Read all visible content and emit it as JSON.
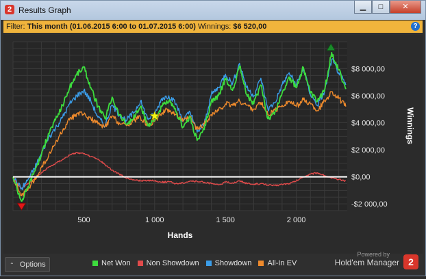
{
  "window": {
    "title": "Results Graph",
    "app_icon_label": "2",
    "minimize_label": "▁",
    "maximize_label": "□",
    "close_label": "✕"
  },
  "filter": {
    "prefix": "Filter:",
    "value": "This month (01.06.2015 6:00 to 01.07.2015 6:00)",
    "winnings_label": "Winnings:",
    "winnings_value": "$6 520,00",
    "help_label": "?"
  },
  "chart_data": {
    "type": "line",
    "xlabel": "Hands",
    "ylabel": "Winnings",
    "xlim": [
      0,
      2360
    ],
    "ylim": [
      -2500,
      10000
    ],
    "x_ticks": [
      500,
      1000,
      1500,
      2000
    ],
    "x_tick_labels": [
      "500",
      "1 000",
      "1 500",
      "2 000"
    ],
    "y_ticks": [
      -2000,
      0,
      2000,
      4000,
      6000,
      8000
    ],
    "y_tick_labels": [
      "-$2 000,00",
      "$0,00",
      "$2 000,00",
      "$4 000,00",
      "$6 000,00",
      "$8 000,00"
    ],
    "grid": true,
    "series": [
      {
        "name": "Net Won",
        "color": "#3ddc3d",
        "x": [
          0,
          60,
          100,
          150,
          200,
          250,
          300,
          350,
          400,
          450,
          500,
          550,
          600,
          650,
          700,
          750,
          800,
          850,
          900,
          950,
          1000,
          1050,
          1100,
          1150,
          1200,
          1250,
          1300,
          1350,
          1400,
          1450,
          1500,
          1550,
          1600,
          1650,
          1700,
          1750,
          1800,
          1850,
          1900,
          1950,
          2000,
          2050,
          2100,
          2150,
          2200,
          2250,
          2300,
          2350
        ],
        "values": [
          0,
          -1800,
          -900,
          400,
          1600,
          3200,
          4200,
          5300,
          6600,
          7600,
          8100,
          6600,
          5200,
          4300,
          5900,
          4600,
          3900,
          4300,
          5200,
          3800,
          4200,
          5200,
          5600,
          4800,
          3700,
          4400,
          2700,
          3500,
          5600,
          6000,
          7200,
          6400,
          8200,
          6100,
          5400,
          6800,
          4300,
          4800,
          6200,
          7400,
          6600,
          8100,
          6200,
          5600,
          6400,
          9200,
          7900,
          6500
        ]
      },
      {
        "name": "Non Showdown",
        "color": "#e14b4b",
        "x": [
          0,
          60,
          100,
          150,
          200,
          250,
          300,
          350,
          400,
          450,
          500,
          550,
          600,
          650,
          700,
          750,
          800,
          850,
          900,
          950,
          1000,
          1050,
          1100,
          1150,
          1200,
          1250,
          1300,
          1350,
          1400,
          1450,
          1500,
          1550,
          1600,
          1650,
          1700,
          1750,
          1800,
          1850,
          1900,
          1950,
          2000,
          2050,
          2100,
          2150,
          2200,
          2250,
          2300,
          2350
        ],
        "values": [
          0,
          -900,
          -500,
          -200,
          300,
          700,
          1000,
          1300,
          1600,
          1800,
          1700,
          1500,
          1300,
          900,
          500,
          200,
          -100,
          -200,
          -300,
          -250,
          -300,
          -400,
          -350,
          -500,
          -450,
          -300,
          -350,
          -400,
          -500,
          -600,
          -400,
          -450,
          -300,
          -500,
          -550,
          -500,
          -600,
          -650,
          -550,
          -500,
          -300,
          0,
          200,
          300,
          100,
          -100,
          -200,
          -300
        ]
      },
      {
        "name": "Showdown",
        "color": "#3b9de8",
        "x": [
          0,
          60,
          100,
          150,
          200,
          250,
          300,
          350,
          400,
          450,
          500,
          550,
          600,
          650,
          700,
          750,
          800,
          850,
          900,
          950,
          1000,
          1050,
          1100,
          1150,
          1200,
          1250,
          1300,
          1350,
          1400,
          1450,
          1500,
          1550,
          1600,
          1650,
          1700,
          1750,
          1800,
          1850,
          1900,
          1950,
          2000,
          2050,
          2100,
          2150,
          2200,
          2250,
          2300,
          2350
        ],
        "values": [
          0,
          -900,
          -300,
          600,
          1700,
          2900,
          3600,
          4400,
          5400,
          6000,
          6400,
          5600,
          4400,
          3800,
          5300,
          4600,
          4200,
          4700,
          5600,
          4300,
          4600,
          5800,
          6000,
          5400,
          4200,
          4800,
          3300,
          3900,
          6100,
          6600,
          7600,
          6900,
          8400,
          6600,
          6000,
          7300,
          5000,
          5500,
          6800,
          7700,
          6800,
          8000,
          6100,
          5300,
          6300,
          8700,
          7700,
          6800
        ]
      },
      {
        "name": "All-In EV",
        "color": "#ee8a2c",
        "x": [
          0,
          60,
          100,
          150,
          200,
          250,
          300,
          350,
          400,
          450,
          500,
          550,
          600,
          650,
          700,
          750,
          800,
          850,
          900,
          950,
          1000,
          1050,
          1100,
          1150,
          1200,
          1250,
          1300,
          1350,
          1400,
          1450,
          1500,
          1550,
          1600,
          1650,
          1700,
          1750,
          1800,
          1850,
          1900,
          1950,
          2000,
          2050,
          2100,
          2150,
          2200,
          2250,
          2300,
          2350
        ],
        "values": [
          0,
          -1400,
          -1000,
          -300,
          700,
          1500,
          2500,
          3400,
          4200,
          4700,
          4600,
          4300,
          3900,
          3700,
          4500,
          4000,
          3800,
          4200,
          4400,
          3900,
          4100,
          4700,
          5000,
          4600,
          4100,
          4400,
          3500,
          3900,
          4600,
          4900,
          5400,
          5300,
          5600,
          5300,
          5000,
          5500,
          4600,
          4900,
          5300,
          5600,
          5200,
          5700,
          5400,
          4900,
          5600,
          6300,
          5800,
          5200
        ]
      }
    ],
    "markers": [
      {
        "kind": "max",
        "x": 2245,
        "y": 9200,
        "color": "#1a8a2a"
      },
      {
        "kind": "min",
        "x": 60,
        "y": -1800,
        "color": "#e01818"
      },
      {
        "kind": "star",
        "x": 1000,
        "y": 4500,
        "color": "#f5f518"
      }
    ]
  },
  "footer": {
    "options_label": "Options",
    "chevron": "⌃",
    "powered_by": "Powered by",
    "brand": "Hold'em Manager",
    "brand_logo": "2"
  }
}
